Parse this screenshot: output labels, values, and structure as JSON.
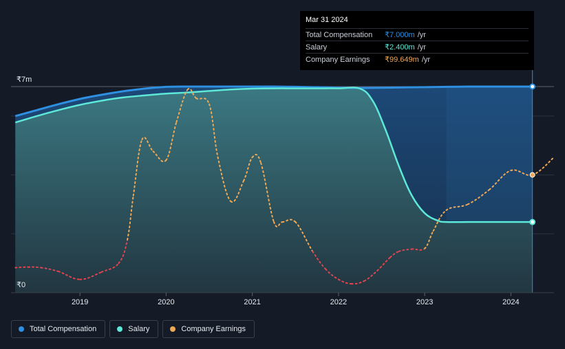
{
  "tooltip": {
    "date": "Mar 31 2024",
    "rows": [
      {
        "label": "Total Compensation",
        "value": "₹7.000m",
        "unit": "/yr"
      },
      {
        "label": "Salary",
        "value": "₹2.400m",
        "unit": "/yr"
      },
      {
        "label": "Company Earnings",
        "value": "₹99.649m",
        "unit": "/yr"
      }
    ]
  },
  "legend": [
    {
      "label": "Total Compensation",
      "color": "#2f8fe0"
    },
    {
      "label": "Salary",
      "color": "#5ee8d8"
    },
    {
      "label": "Company Earnings",
      "color": "#f0a854"
    }
  ],
  "chart_data": {
    "type": "area",
    "ylabel_top": "₹7m",
    "ylabel_bottom": "₹0",
    "ylim": [
      0,
      7
    ],
    "xlim": [
      2018.2,
      2024.5
    ],
    "x_ticks": [
      {
        "value": 2019,
        "label": "2019"
      },
      {
        "value": 2020,
        "label": "2020"
      },
      {
        "value": 2021,
        "label": "2021"
      },
      {
        "value": 2022,
        "label": "2022"
      },
      {
        "value": 2023,
        "label": "2023"
      },
      {
        "value": 2024,
        "label": "2024"
      }
    ],
    "gridlines": [
      0,
      2,
      4,
      6,
      7
    ],
    "highlight_start": 2022.25,
    "forecast_start": 2023.25,
    "cursor_x": 2024.25,
    "colors": {
      "total": "#2f8fe0",
      "salary": "#5ee8d8",
      "earnings_positive": "#f0a854",
      "earnings_negative": "#e0444f"
    },
    "series": [
      {
        "name": "Total Compensation",
        "x": [
          2018.25,
          2018.5,
          2018.75,
          2019.0,
          2019.25,
          2019.5,
          2019.75,
          2020.0,
          2020.25,
          2020.5,
          2020.75,
          2021.0,
          2021.25,
          2021.5,
          2021.75,
          2022.0,
          2022.25,
          2022.5,
          2022.75,
          2023.0,
          2023.25,
          2023.5,
          2023.75,
          2024.0,
          2024.25
        ],
        "values": [
          6.0,
          6.2,
          6.4,
          6.58,
          6.72,
          6.84,
          6.93,
          6.99,
          7.0,
          7.0,
          7.0,
          7.0,
          7.0,
          6.99,
          6.98,
          6.96,
          6.95,
          6.96,
          6.97,
          6.98,
          6.99,
          7.0,
          7.0,
          7.0,
          7.0
        ]
      },
      {
        "name": "Salary",
        "x": [
          2018.25,
          2018.5,
          2018.75,
          2019.0,
          2019.25,
          2019.5,
          2019.75,
          2020.0,
          2020.25,
          2020.5,
          2020.75,
          2021.0,
          2021.25,
          2021.5,
          2021.75,
          2022.0,
          2022.25,
          2022.4,
          2022.55,
          2022.7,
          2022.85,
          2023.0,
          2023.15,
          2023.25,
          2023.5,
          2023.75,
          2024.0,
          2024.25
        ],
        "values": [
          5.78,
          6.0,
          6.2,
          6.38,
          6.52,
          6.63,
          6.7,
          6.76,
          6.8,
          6.85,
          6.9,
          6.93,
          6.94,
          6.94,
          6.94,
          6.94,
          6.93,
          6.5,
          5.5,
          4.3,
          3.3,
          2.7,
          2.45,
          2.4,
          2.4,
          2.4,
          2.4,
          2.4
        ]
      },
      {
        "name": "Company Earnings",
        "x": [
          2018.25,
          2018.4,
          2018.55,
          2018.75,
          2019.0,
          2019.25,
          2019.45,
          2019.55,
          2019.62,
          2019.72,
          2019.85,
          2020.0,
          2020.12,
          2020.25,
          2020.35,
          2020.5,
          2020.6,
          2020.75,
          2020.9,
          2021.0,
          2021.1,
          2021.25,
          2021.35,
          2021.5,
          2021.7,
          2021.85,
          2022.0,
          2022.15,
          2022.3,
          2022.45,
          2022.6,
          2022.7,
          2022.85,
          2023.0,
          2023.1,
          2023.25,
          2023.5,
          2023.75,
          2024.0,
          2024.25,
          2024.5
        ],
        "values": [
          0.85,
          0.87,
          0.85,
          0.72,
          0.45,
          0.7,
          1.0,
          1.8,
          3.3,
          5.2,
          4.8,
          4.5,
          5.8,
          6.9,
          6.6,
          6.4,
          4.6,
          3.1,
          3.8,
          4.6,
          4.4,
          2.4,
          2.4,
          2.4,
          1.4,
          0.8,
          0.45,
          0.3,
          0.4,
          0.75,
          1.2,
          1.4,
          1.48,
          1.5,
          2.1,
          2.8,
          3.0,
          3.5,
          4.15,
          4.0,
          4.6
        ]
      }
    ]
  }
}
